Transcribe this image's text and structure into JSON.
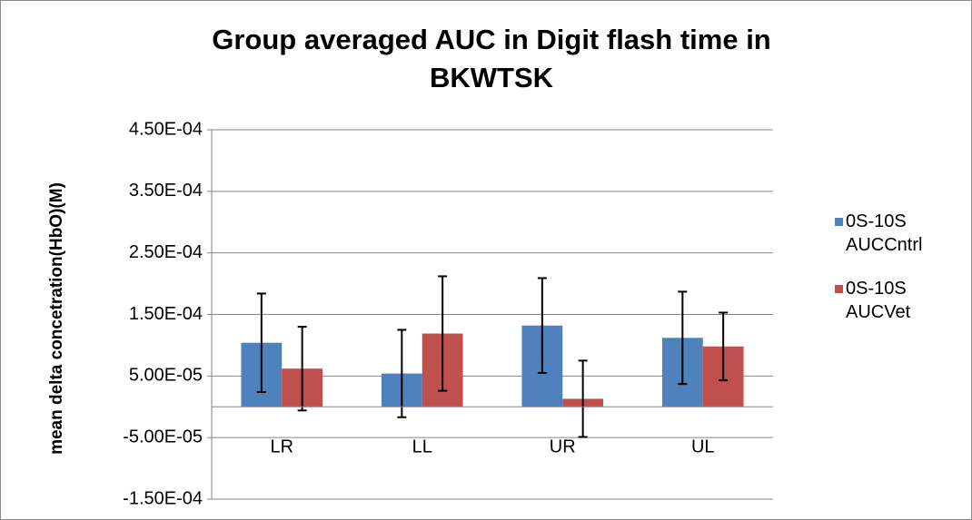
{
  "chart_data": {
    "type": "bar",
    "title": "Group averaged AUC in Digit flash time in BKWTSK",
    "y_label": "mean delta concetration(HbO)(M)",
    "categories": [
      "LR",
      "LL",
      "UR",
      "UL"
    ],
    "series": [
      {
        "name": "0S-10S AUCCntrl",
        "color": "#4f81bd",
        "values": [
          0.000104,
          5.4e-05,
          0.000132,
          0.000112
        ],
        "errors": [
          8e-05,
          7.1e-05,
          7.7e-05,
          7.5e-05
        ]
      },
      {
        "name": "0S-10S AUCVet",
        "color": "#c0504d",
        "values": [
          6.2e-05,
          0.000119,
          1.3e-05,
          9.8e-05
        ],
        "errors": [
          6.8e-05,
          9.3e-05,
          6.2e-05,
          5.5e-05
        ]
      }
    ],
    "ylim": [
      -0.00015,
      0.00045
    ],
    "yticks": [
      {
        "value": -0.00015,
        "label": "-1.50E-04"
      },
      {
        "value": -5e-05,
        "label": "-5.00E-05"
      },
      {
        "value": 5e-05,
        "label": "5.00E-05"
      },
      {
        "value": 0.00015,
        "label": "1.50E-04"
      },
      {
        "value": 0.00025,
        "label": "2.50E-04"
      },
      {
        "value": 0.00035,
        "label": "3.50E-04"
      },
      {
        "value": 0.00045,
        "label": "4.50E-04"
      }
    ],
    "grid": true
  }
}
